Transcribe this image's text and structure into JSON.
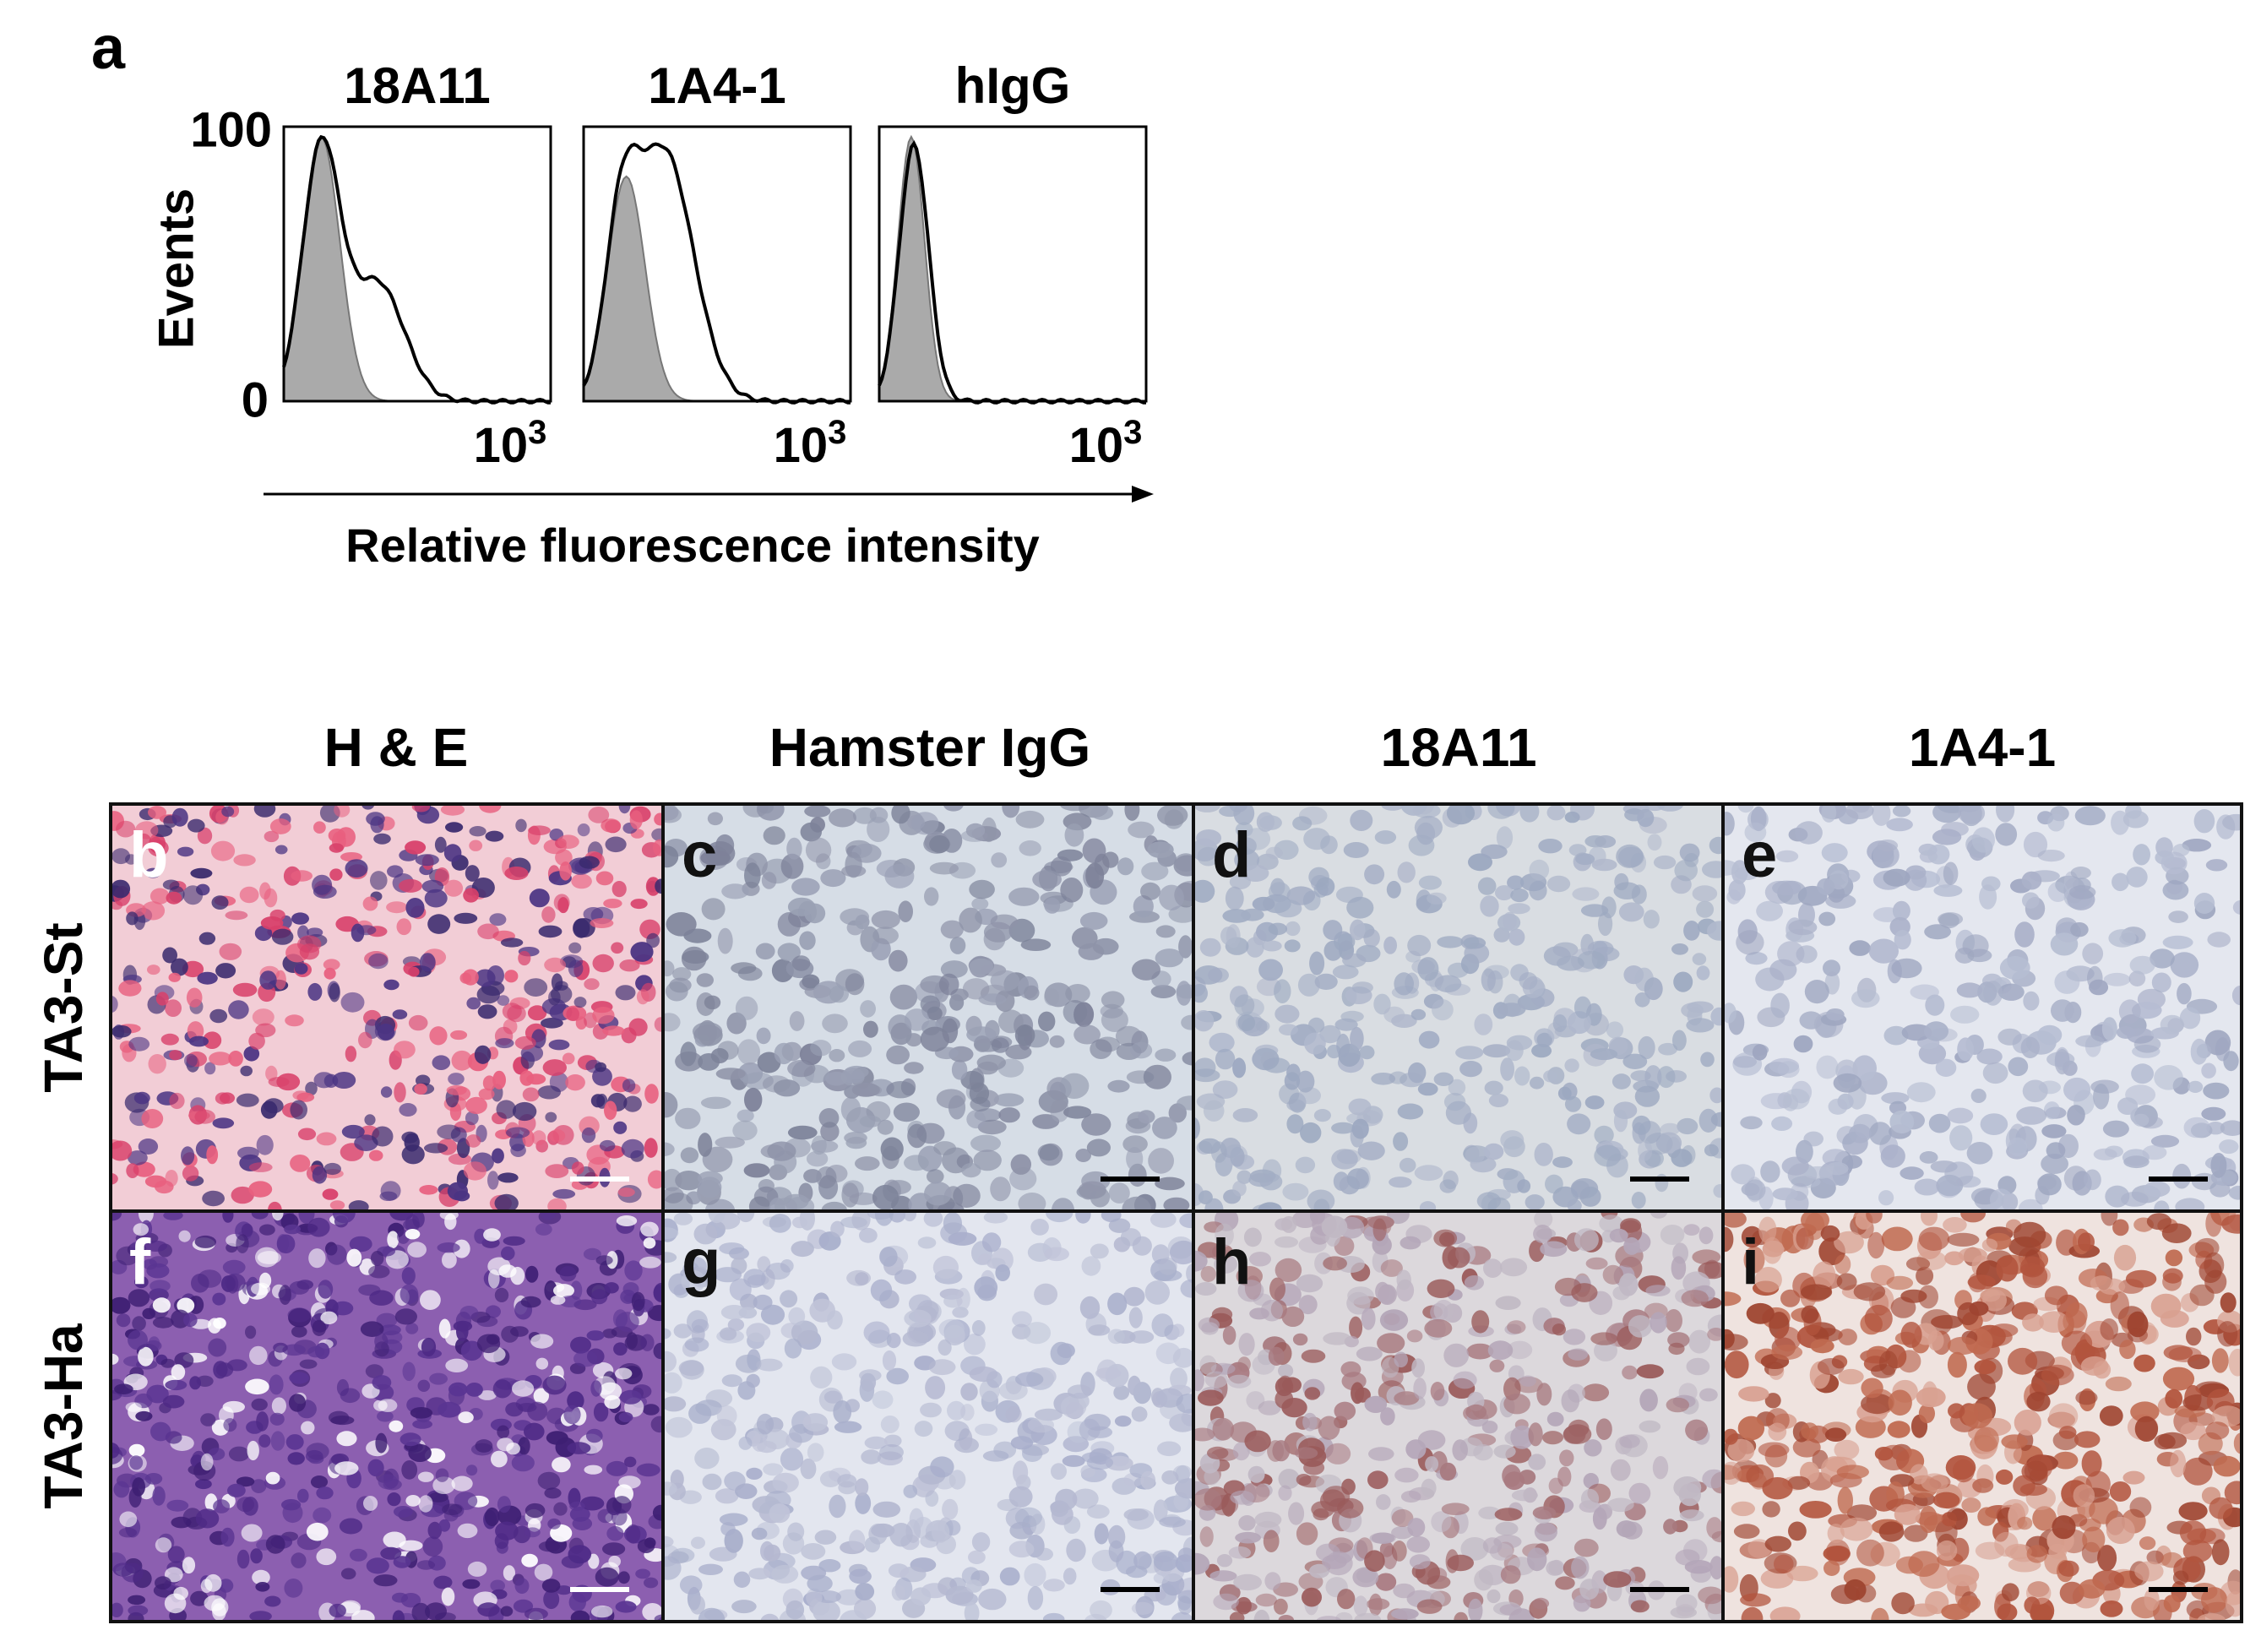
{
  "figure": {
    "flow": {
      "label": "a",
      "y_label": "Events",
      "y_ticks": [
        "100",
        "0"
      ],
      "x_label": "Relative fluorescence intensity",
      "panels": [
        {
          "title": "18A11",
          "x_tick": {
            "base": "10",
            "exp": "3"
          }
        },
        {
          "title": "1A4-1",
          "x_tick": {
            "base": "10",
            "exp": "3"
          }
        },
        {
          "title": "hIgG",
          "x_tick": {
            "base": "10",
            "exp": "3"
          }
        }
      ]
    },
    "histology": {
      "columns": [
        "H & E",
        "Hamster IgG",
        "18A11",
        "1A4-1"
      ],
      "rows": [
        {
          "label": "TA3-St",
          "panels": [
            "b",
            "c",
            "d",
            "e"
          ]
        },
        {
          "label": "TA3-Ha",
          "panels": [
            "f",
            "g",
            "h",
            "i"
          ]
        }
      ]
    }
  }
}
